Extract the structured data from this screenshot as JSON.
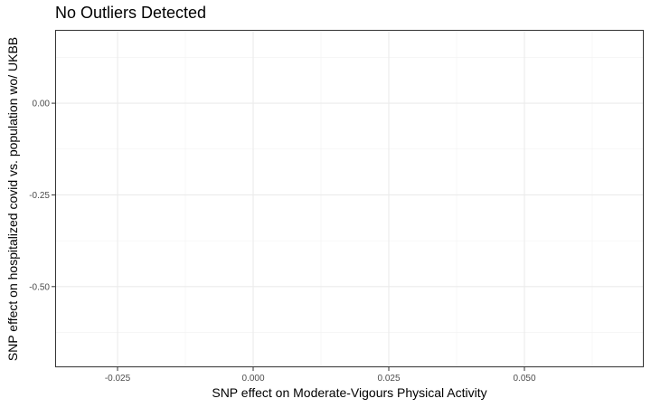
{
  "chart_data": {
    "type": "scatter",
    "title": "No Outliers Detected",
    "xlabel": "SNP effect on Moderate-Vigours Physical Activity",
    "ylabel": "SNP effect on hospitalized covid vs. population wo/ UKBB",
    "xlim": [
      -0.0365,
      0.072
    ],
    "ylim": [
      -0.72,
      0.2
    ],
    "x_ticks": [
      -0.025,
      0.0,
      0.025,
      0.05
    ],
    "x_tick_labels": [
      "-0.025",
      "0.000",
      "0.025",
      "0.050"
    ],
    "y_ticks": [
      0.0,
      -0.25,
      -0.5
    ],
    "y_tick_labels": [
      "0.00",
      "-0.25",
      "-0.50"
    ],
    "grid": true,
    "points": []
  }
}
